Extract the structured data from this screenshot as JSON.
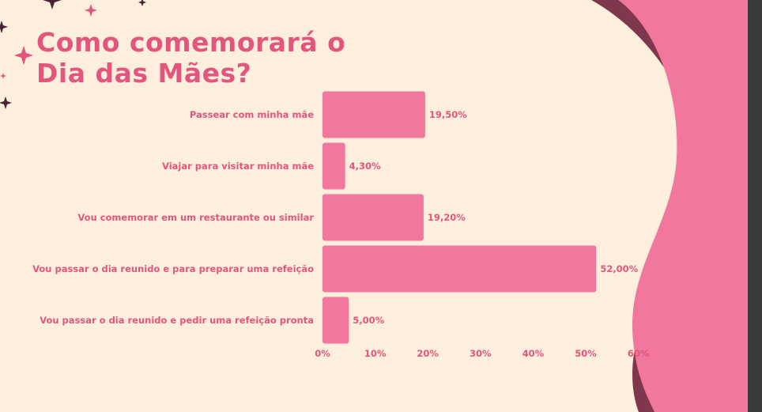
{
  "slide": {
    "title_line1": "Como comemorará o",
    "title_line2": "Dia das Mães?"
  },
  "colors": {
    "background": "#fdeedd",
    "bar": "#f2779c",
    "text": "#e2567c",
    "wave_dark": "#7f374d",
    "wave_pink": "#f2779c",
    "star": "#e2567c",
    "star_dark": "#4a2433"
  },
  "chart_data": {
    "type": "bar",
    "orientation": "horizontal",
    "title": "Como comemorará o Dia das Mães?",
    "categories": [
      "Passear com minha mãe",
      "Viajar para visitar minha mãe",
      "Vou comemorar em um restaurante ou similar",
      "Vou passar o dia reunido e para preparar uma refeição",
      "Vou passar o dia reunido e pedir uma refeição pronta"
    ],
    "values": [
      19.5,
      4.3,
      19.2,
      52.0,
      5.0
    ],
    "value_labels": [
      "19,50%",
      "4,30%",
      "19,20%",
      "52,00%",
      "5,00%"
    ],
    "xlim": [
      0,
      60
    ],
    "x_ticks": [
      0,
      10,
      20,
      30,
      40,
      50,
      60
    ],
    "x_tick_labels": [
      "0%",
      "10%",
      "20%",
      "30%",
      "40%",
      "50%",
      "60%"
    ],
    "grid": false,
    "legend": "none"
  }
}
